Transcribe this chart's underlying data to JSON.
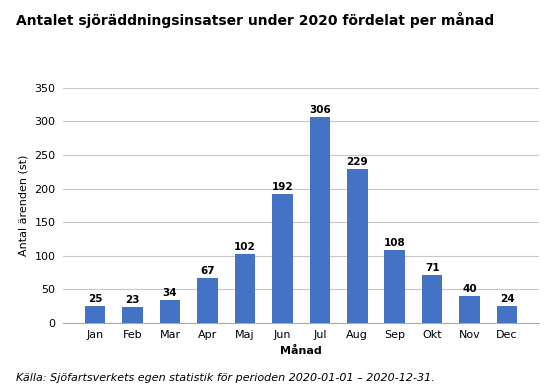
{
  "title": "Antalet sjöräddningsinsatser under 2020 fördelat per månad",
  "categories": [
    "Jan",
    "Feb",
    "Mar",
    "Apr",
    "Maj",
    "Jun",
    "Jul",
    "Aug",
    "Sep",
    "Okt",
    "Nov",
    "Dec"
  ],
  "values": [
    25,
    23,
    34,
    67,
    102,
    192,
    306,
    229,
    108,
    71,
    40,
    24
  ],
  "bar_color": "#4472C4",
  "xlabel": "Månad",
  "ylabel": "Antal ärenden (st)",
  "ylim": [
    0,
    350
  ],
  "yticks": [
    0,
    50,
    100,
    150,
    200,
    250,
    300,
    350
  ],
  "caption": "Källa: Sjöfartsverkets egen statistik för perioden 2020-01-01 – 2020-12-31.",
  "title_fontsize": 10,
  "label_fontsize": 8,
  "tick_fontsize": 8,
  "caption_fontsize": 8,
  "bar_label_fontsize": 7.5,
  "background_color": "#ffffff",
  "grid_color": "#c8c8c8",
  "bar_width": 0.55
}
